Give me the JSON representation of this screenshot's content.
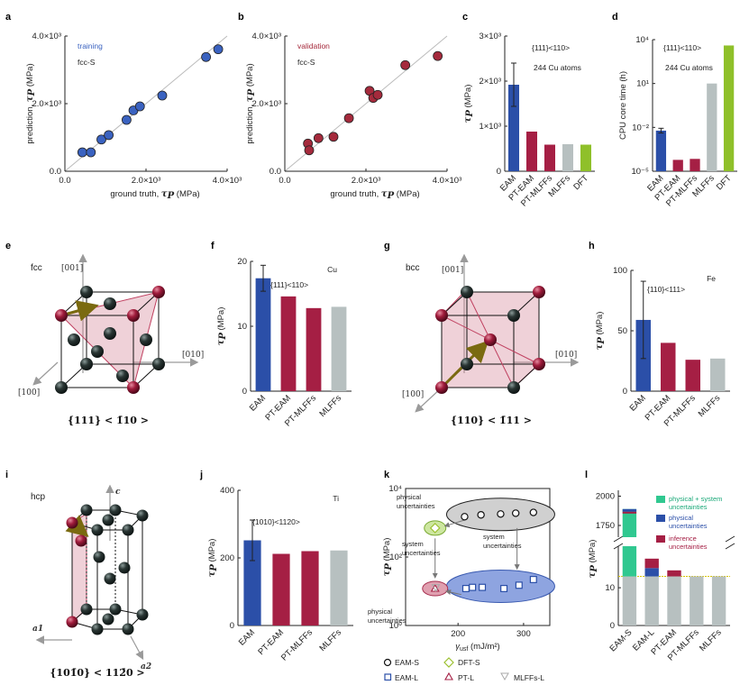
{
  "panels": {
    "a": "a",
    "b": "b",
    "c": "c",
    "d": "d",
    "e": "e",
    "f": "f",
    "g": "g",
    "h": "h",
    "i": "i",
    "j": "j",
    "k": "k",
    "l": "l"
  },
  "structures": {
    "e": {
      "lattice": "fcc",
      "slip": "{111} < 1̄10 >",
      "dir_001": "[001]",
      "dir_010": "[010]",
      "dir_100": "[100]"
    },
    "g": {
      "lattice": "bcc",
      "slip": "{110} < 1̄11 >",
      "dir_001": "[001]",
      "dir_010": "[010]",
      "dir_100": "[100]"
    },
    "i": {
      "lattice": "hcp",
      "slip": "{101̄0} < 112̄0 >",
      "c_axis": "c",
      "a1_axis": "a1",
      "a2_axis": "a2"
    }
  },
  "colors": {
    "eam": "#2b4fa8",
    "pt": "#a51f44",
    "mlff": "#b7c0c0",
    "dft": "#8fc02a",
    "train": "#3a62c0",
    "valid": "#a52a3c",
    "ellipse_blue": "#8ea4e0",
    "ellipse_pink": "#e0a0b0",
    "ellipse_green": "#cde6a0",
    "phys_sys": "#30c890"
  },
  "chart_data": [
    {
      "id": "a",
      "type": "scatter",
      "legend_text": "training",
      "subset": "fcc-S",
      "xlabel_main": "ground truth, ",
      "xlabel_tau": "τ",
      "xlabel_sub": "P",
      "xlabel_unit": " (MPa)",
      "ylabel_main": "prediction, ",
      "ylabel_tau": "τ",
      "ylabel_sub": "P",
      "ylabel_unit": " (MPa)",
      "xlim": [
        0,
        4000
      ],
      "ylim": [
        0,
        4000
      ],
      "xticks": [
        "0.0",
        "2.0×10³",
        "4.0×10³"
      ],
      "yticks": [
        "0.0",
        "2.0×10³",
        "4.0×10³"
      ],
      "points": [
        [
          430,
          560
        ],
        [
          640,
          560
        ],
        [
          900,
          940
        ],
        [
          1080,
          1070
        ],
        [
          1520,
          1520
        ],
        [
          1690,
          1800
        ],
        [
          1850,
          1920
        ],
        [
          2400,
          2240
        ],
        [
          3480,
          3380
        ],
        [
          3780,
          3610
        ]
      ]
    },
    {
      "id": "b",
      "type": "scatter",
      "legend_text": "validation",
      "subset": "fcc-S",
      "xlabel_main": "ground truth, ",
      "xlabel_tau": "τ",
      "xlabel_sub": "P",
      "xlabel_unit": " (MPa)",
      "ylabel_main": "prediction, ",
      "ylabel_tau": "τ",
      "ylabel_sub": "P",
      "ylabel_unit": " (MPa)",
      "xlim": [
        0,
        4000
      ],
      "ylim": [
        0,
        4000
      ],
      "xticks": [
        "0.0",
        "2.0×10³",
        "4.0×10³"
      ],
      "yticks": [
        "0.0",
        "2.0×10³",
        "4.0×10³"
      ],
      "points": [
        [
          570,
          820
        ],
        [
          600,
          620
        ],
        [
          830,
          980
        ],
        [
          1200,
          1020
        ],
        [
          1580,
          1570
        ],
        [
          2090,
          2380
        ],
        [
          2180,
          2170
        ],
        [
          2290,
          2260
        ],
        [
          2970,
          3140
        ],
        [
          3770,
          3410
        ]
      ]
    },
    {
      "id": "c",
      "type": "bar",
      "annotation": "{111}<110>",
      "annotation2": "244 Cu atoms",
      "ylabel_tau": "τ",
      "ylabel_sub": "P",
      "ylabel_unit": " (MPa)",
      "categories": [
        "EAM",
        "PT-EAM",
        "PT-MLFFs",
        "MLFFs",
        "DFT"
      ],
      "values": [
        1920,
        880,
        590,
        600,
        590
      ],
      "error": [
        480,
        0,
        0,
        0,
        0
      ],
      "ylim": [
        0,
        3000
      ],
      "yticks": [
        "0",
        "1×10³",
        "2×10³",
        "3×10³"
      ]
    },
    {
      "id": "d",
      "type": "bar",
      "annotation": "{111}<110>",
      "annotation2": "244 Cu atoms",
      "ylabel": "CPU core time (h)",
      "log": true,
      "categories": [
        "EAM",
        "PT-EAM",
        "PT-MLFFs",
        "MLFFs",
        "DFT"
      ],
      "values": [
        0.006,
        6e-05,
        7e-05,
        10,
        4000
      ],
      "error_factor": [
        1.45,
        1,
        1,
        1,
        1
      ],
      "ylim_exp": [
        -5,
        4
      ],
      "yticks": [
        "10⁻⁵",
        "10⁻²",
        "10¹",
        "10⁴"
      ]
    },
    {
      "id": "f",
      "type": "bar",
      "element": "Cu",
      "annotation": "{111}<110>",
      "ylabel_tau": "τ",
      "ylabel_sub": "P",
      "ylabel_unit": " (MPa)",
      "categories": [
        "EAM",
        "PT-EAM",
        "PT-MLFFs",
        "MLFFs"
      ],
      "values": [
        17.4,
        14.6,
        12.8,
        13.0
      ],
      "error": [
        2.0,
        0,
        0,
        0
      ],
      "ylim": [
        0,
        20
      ],
      "yticks": [
        "0",
        "10",
        "20"
      ]
    },
    {
      "id": "h",
      "type": "bar",
      "element": "Fe",
      "annotation": "{110}<111>",
      "ylabel_tau": "τ",
      "ylabel_sub": "P",
      "ylabel_unit": " (MPa)",
      "categories": [
        "EAM",
        "PT-EAM",
        "PT-MLFFs",
        "MLFFs"
      ],
      "values": [
        59,
        40,
        26,
        27
      ],
      "error": [
        32,
        0,
        0,
        0
      ],
      "ylim": [
        0,
        100
      ],
      "yticks": [
        "0",
        "50",
        "100"
      ]
    },
    {
      "id": "j",
      "type": "bar",
      "element": "Ti",
      "annotation": "{1010}<1120>",
      "ylabel_tau": "τ",
      "ylabel_sub": "P",
      "ylabel_unit": " (MPa)",
      "categories": [
        "EAM",
        "PT-EAM",
        "PT-MLFFs",
        "MLFFs"
      ],
      "values": [
        252,
        212,
        220,
        222
      ],
      "error": [
        60,
        0,
        0,
        0
      ],
      "ylim": [
        0,
        400
      ],
      "yticks": [
        "0",
        "200",
        "400"
      ]
    },
    {
      "id": "k",
      "type": "scatter",
      "log_y": true,
      "xlabel": "γ",
      "xlabel_sub": "usf",
      "xlabel_unit": " (mJ/m²)",
      "ylabel_tau": "τ",
      "ylabel_sub": "P",
      "ylabel_unit": " (MPa)",
      "xlim": [
        120,
        340
      ],
      "ylim_exp": [
        0,
        4
      ],
      "xticks": [
        "200",
        "300"
      ],
      "yticks": [
        "10⁰",
        "10²",
        "10⁴"
      ],
      "series": [
        {
          "name": "EAM-S",
          "marker": "circle",
          "points": [
            [
              210,
              1500
            ],
            [
              235,
              1700
            ],
            [
              265,
              1800
            ],
            [
              288,
              1900
            ],
            [
              315,
              2000
            ]
          ]
        },
        {
          "name": "DFT-S",
          "marker": "diamond",
          "points": [
            [
              165,
              700
            ]
          ]
        },
        {
          "name": "EAM-L",
          "marker": "square",
          "points": [
            [
              212,
              12
            ],
            [
              222,
              13
            ],
            [
              237,
              13
            ],
            [
              270,
              12
            ],
            [
              293,
              15
            ],
            [
              315,
              22
            ]
          ]
        },
        {
          "name": "PT-L",
          "marker": "triangle",
          "points": [
            [
              165,
              12
            ]
          ]
        },
        {
          "name": "MLFFs-L",
          "marker": "triangle-down",
          "points": [
            [
              166,
              13
            ]
          ]
        }
      ],
      "annotations": [
        "physical",
        "uncertainties",
        "system",
        "uncertainties",
        "system",
        "uncertainties",
        "physical",
        "uncertainties"
      ]
    },
    {
      "id": "l",
      "type": "stacked-bar",
      "broken_axis": true,
      "ylabel_tau": "τ",
      "ylabel_sub": "P",
      "ylabel_unit": " (MPa)",
      "categories": [
        "EAM-S",
        "EAM-L",
        "PT-EAM",
        "PT-MLFFs",
        "MLFFs"
      ],
      "base": [
        13.0,
        13.0,
        13.0,
        13.0,
        13.0
      ],
      "inference": [
        0,
        2.5,
        1.6,
        0,
        0
      ],
      "physical": [
        0,
        2.2,
        0,
        0,
        0
      ],
      "physical_system": [
        1890,
        0,
        0,
        0,
        0
      ],
      "legend": [
        "physical + system",
        "uncertainties",
        "physical",
        "uncertainties",
        "inference",
        "uncertainties"
      ],
      "yticks": [
        "0",
        "10",
        "1750",
        "2000"
      ]
    }
  ],
  "legend_k": [
    "EAM-S",
    "DFT-S",
    "EAM-L",
    "PT-L",
    "MLFFs-L"
  ]
}
